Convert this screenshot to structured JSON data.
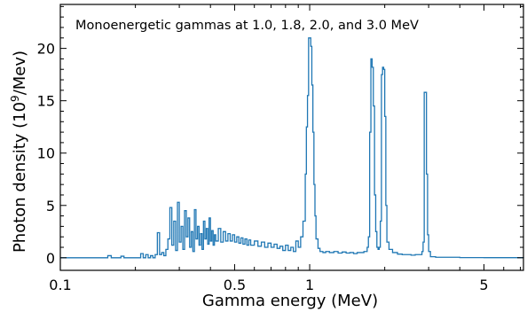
{
  "chart_data": {
    "type": "line",
    "annotation": "Monoenergetic gammas at 1.0, 1.8, 2.0, and 3.0 MeV",
    "xlabel": "Gamma energy (MeV)",
    "ylabel_parts": {
      "pre": "Photon density (10",
      "sup": "9",
      "post": "/Mev)"
    },
    "x_scale": "log",
    "xlim": [
      0.1,
      7.2
    ],
    "ylim": [
      -1.2,
      24.2
    ],
    "x_ticks": [
      {
        "value": 0.1,
        "label": "0.1"
      },
      {
        "value": 0.5,
        "label": "0.5"
      },
      {
        "value": 1,
        "label": "1"
      },
      {
        "value": 5,
        "label": "5"
      }
    ],
    "x_minor_ticks": [
      0.2,
      0.3,
      0.4,
      0.6,
      0.7,
      0.8,
      0.9,
      2,
      3,
      4,
      6,
      7
    ],
    "y_ticks": [
      {
        "value": 0,
        "label": "0"
      },
      {
        "value": 5,
        "label": "5"
      },
      {
        "value": 10,
        "label": "10"
      },
      {
        "value": 15,
        "label": "15"
      },
      {
        "value": 20,
        "label": "20"
      }
    ],
    "y_minor_ticks": [
      1,
      2,
      3,
      4,
      6,
      7,
      8,
      9,
      11,
      12,
      13,
      14,
      16,
      17,
      18,
      19,
      21,
      22,
      23,
      24
    ],
    "grid": false,
    "series": [
      {
        "color": "#1f77b4",
        "step": true,
        "points": [
          [
            0.1,
            0
          ],
          [
            0.15,
            0
          ],
          [
            0.155,
            0.2
          ],
          [
            0.16,
            0
          ],
          [
            0.17,
            0
          ],
          [
            0.175,
            0.15
          ],
          [
            0.18,
            0
          ],
          [
            0.205,
            0
          ],
          [
            0.21,
            0.4
          ],
          [
            0.215,
            0
          ],
          [
            0.22,
            0.3
          ],
          [
            0.225,
            0
          ],
          [
            0.23,
            0.2
          ],
          [
            0.235,
            0
          ],
          [
            0.24,
            0.3
          ],
          [
            0.245,
            2.4
          ],
          [
            0.25,
            0.3
          ],
          [
            0.255,
            0.5
          ],
          [
            0.26,
            0.2
          ],
          [
            0.265,
            0.8
          ],
          [
            0.27,
            1.8
          ],
          [
            0.275,
            4.8
          ],
          [
            0.28,
            1.2
          ],
          [
            0.285,
            3.5
          ],
          [
            0.29,
            0.7
          ],
          [
            0.295,
            5.3
          ],
          [
            0.3,
            1.5
          ],
          [
            0.305,
            3.0
          ],
          [
            0.31,
            0.8
          ],
          [
            0.315,
            4.5
          ],
          [
            0.32,
            2.0
          ],
          [
            0.325,
            3.8
          ],
          [
            0.33,
            1.0
          ],
          [
            0.335,
            2.5
          ],
          [
            0.34,
            0.6
          ],
          [
            0.345,
            4.6
          ],
          [
            0.35,
            1.8
          ],
          [
            0.355,
            3.0
          ],
          [
            0.36,
            1.2
          ],
          [
            0.365,
            2.3
          ],
          [
            0.37,
            0.8
          ],
          [
            0.375,
            3.5
          ],
          [
            0.38,
            1.8
          ],
          [
            0.385,
            2.8
          ],
          [
            0.39,
            1.3
          ],
          [
            0.395,
            3.8
          ],
          [
            0.4,
            1.6
          ],
          [
            0.405,
            2.6
          ],
          [
            0.41,
            1.2
          ],
          [
            0.415,
            2.2
          ],
          [
            0.42,
            1.6
          ],
          [
            0.43,
            2.8
          ],
          [
            0.44,
            1.5
          ],
          [
            0.45,
            2.5
          ],
          [
            0.46,
            1.6
          ],
          [
            0.47,
            2.3
          ],
          [
            0.48,
            1.6
          ],
          [
            0.49,
            2.2
          ],
          [
            0.5,
            1.5
          ],
          [
            0.51,
            2.0
          ],
          [
            0.52,
            1.4
          ],
          [
            0.53,
            1.9
          ],
          [
            0.54,
            1.3
          ],
          [
            0.55,
            1.8
          ],
          [
            0.56,
            1.2
          ],
          [
            0.57,
            1.7
          ],
          [
            0.58,
            1.2
          ],
          [
            0.6,
            1.6
          ],
          [
            0.62,
            1.1
          ],
          [
            0.64,
            1.5
          ],
          [
            0.66,
            1.0
          ],
          [
            0.68,
            1.4
          ],
          [
            0.7,
            1.0
          ],
          [
            0.72,
            1.3
          ],
          [
            0.74,
            0.9
          ],
          [
            0.76,
            1.1
          ],
          [
            0.78,
            0.7
          ],
          [
            0.8,
            1.2
          ],
          [
            0.82,
            0.7
          ],
          [
            0.84,
            1.0
          ],
          [
            0.86,
            0.6
          ],
          [
            0.88,
            1.6
          ],
          [
            0.9,
            1.0
          ],
          [
            0.92,
            2.0
          ],
          [
            0.94,
            3.5
          ],
          [
            0.96,
            8.0
          ],
          [
            0.97,
            12.5
          ],
          [
            0.98,
            15.5
          ],
          [
            0.99,
            21.0
          ],
          [
            1.0,
            21.0
          ],
          [
            1.01,
            20.2
          ],
          [
            1.02,
            16.5
          ],
          [
            1.03,
            12.0
          ],
          [
            1.04,
            7.0
          ],
          [
            1.05,
            4.0
          ],
          [
            1.06,
            1.8
          ],
          [
            1.08,
            0.9
          ],
          [
            1.1,
            0.6
          ],
          [
            1.13,
            0.5
          ],
          [
            1.16,
            0.6
          ],
          [
            1.2,
            0.5
          ],
          [
            1.25,
            0.6
          ],
          [
            1.3,
            0.45
          ],
          [
            1.35,
            0.55
          ],
          [
            1.4,
            0.45
          ],
          [
            1.45,
            0.5
          ],
          [
            1.5,
            0.4
          ],
          [
            1.55,
            0.5
          ],
          [
            1.6,
            0.5
          ],
          [
            1.65,
            0.6
          ],
          [
            1.7,
            1.0
          ],
          [
            1.72,
            2.0
          ],
          [
            1.74,
            12.0
          ],
          [
            1.76,
            19.0
          ],
          [
            1.78,
            18.2
          ],
          [
            1.8,
            14.5
          ],
          [
            1.82,
            6.0
          ],
          [
            1.84,
            2.5
          ],
          [
            1.86,
            1.0
          ],
          [
            1.88,
            0.8
          ],
          [
            1.9,
            1.0
          ],
          [
            1.92,
            3.5
          ],
          [
            1.94,
            17.5
          ],
          [
            1.96,
            18.2
          ],
          [
            1.98,
            18.0
          ],
          [
            2.0,
            13.5
          ],
          [
            2.02,
            5.0
          ],
          [
            2.04,
            1.5
          ],
          [
            2.08,
            0.8
          ],
          [
            2.15,
            0.5
          ],
          [
            2.25,
            0.35
          ],
          [
            2.35,
            0.3
          ],
          [
            2.45,
            0.3
          ],
          [
            2.55,
            0.25
          ],
          [
            2.65,
            0.3
          ],
          [
            2.75,
            0.3
          ],
          [
            2.82,
            0.6
          ],
          [
            2.85,
            1.5
          ],
          [
            2.88,
            15.8
          ],
          [
            2.91,
            15.8
          ],
          [
            2.94,
            8.0
          ],
          [
            2.97,
            2.2
          ],
          [
            3.0,
            0.6
          ],
          [
            3.05,
            0.1
          ],
          [
            3.2,
            0.05
          ],
          [
            4.0,
            0.02
          ],
          [
            5.0,
            0.01
          ],
          [
            7.2,
            0
          ]
        ]
      }
    ]
  }
}
